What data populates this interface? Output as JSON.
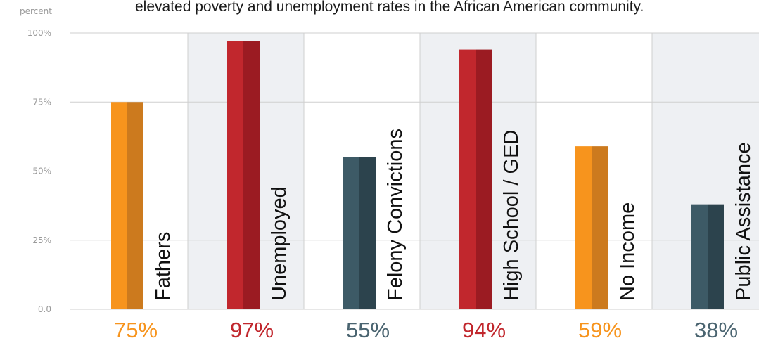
{
  "chart_data": {
    "type": "bar",
    "title": "elevated poverty and unemployment rates in the African American community.",
    "ylabel": "percent",
    "ylim": [
      0,
      100
    ],
    "y_ticks": [
      "0.0",
      "25%",
      "50%",
      "75%",
      "100%"
    ],
    "y_tick_values": [
      0,
      25,
      50,
      75,
      100
    ],
    "grid": true,
    "categories": [
      "Fathers",
      "Unemployed",
      "Felony Convictions",
      "High School / GED",
      "No Income",
      "Public Assistance"
    ],
    "values": [
      75,
      97,
      55,
      94,
      59,
      38
    ],
    "value_labels": [
      "75%",
      "97%",
      "55%",
      "94%",
      "59%",
      "38%"
    ],
    "bar_colors": [
      "#F7941D",
      "#C1272D",
      "#3D5A66",
      "#C1272D",
      "#F7941D",
      "#3D5A66"
    ],
    "bar_shade_colors": [
      "#CC7A1E",
      "#9B1B22",
      "#2C434D",
      "#9B1B22",
      "#CC7A1E",
      "#2C434D"
    ],
    "value_label_colors": [
      "#F7941D",
      "#C1272D",
      "#4A6470",
      "#C1272D",
      "#F7941D",
      "#4A6470"
    ],
    "shaded_columns": [
      false,
      true,
      false,
      true,
      false,
      true
    ],
    "column_shade_color": "#EEF0F3",
    "grid_color": "#CFCFCF"
  }
}
